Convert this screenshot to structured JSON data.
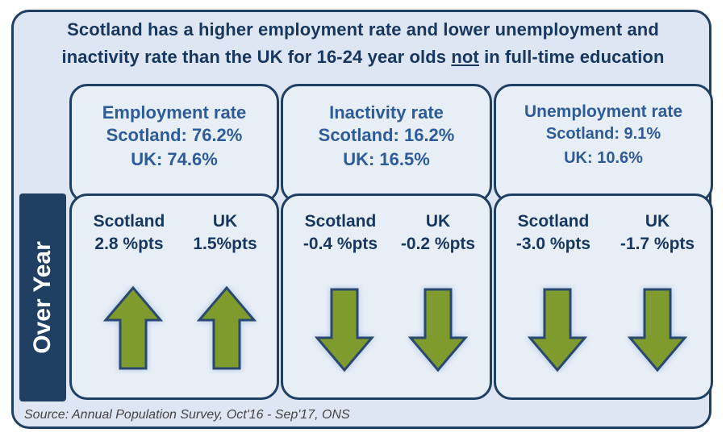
{
  "headline": {
    "line1": "Scotland has a higher employment rate and lower unemployment and",
    "line2_prefix": "inactivity rate than the UK for 16-24 year olds",
    "line2_underlined": "not",
    "line2_suffix": "in full-time education"
  },
  "side_label": "Over Year",
  "panels": [
    {
      "title": "Employment rate",
      "scotland": "Scotland: 76.2%",
      "uk": "UK: 74.6%"
    },
    {
      "title": "Inactivity rate",
      "scotland": "Scotland: 16.2%",
      "uk": "UK: 16.5%"
    },
    {
      "title": "Unemployment rate",
      "scotland": "Scotland: 9.1%",
      "uk": "UK: 10.6%"
    }
  ],
  "changes": [
    {
      "scot_label": "Scotland",
      "scot_value": "2.8 %pts",
      "uk_label": "UK",
      "uk_value": "1.5%pts",
      "direction": "up"
    },
    {
      "scot_label": "Scotland",
      "scot_value": "-0.4 %pts",
      "uk_label": "UK",
      "uk_value": "-0.2 %pts",
      "direction": "down"
    },
    {
      "scot_label": "Scotland",
      "scot_value": "-3.0 %pts",
      "uk_label": "UK",
      "uk_value": "-1.7 %pts",
      "direction": "down"
    }
  ],
  "colors": {
    "arrow_fill": "#7f9b2e",
    "arrow_stroke": "#2a4a6d",
    "arrow_glow": "#a9c4ea",
    "navy": "#1f3f63"
  },
  "icons": {
    "up": "arrow-up-icon",
    "down": "arrow-down-icon"
  },
  "source": "Source: Annual Population Survey,  Oct'16 - Sep'17, ONS"
}
